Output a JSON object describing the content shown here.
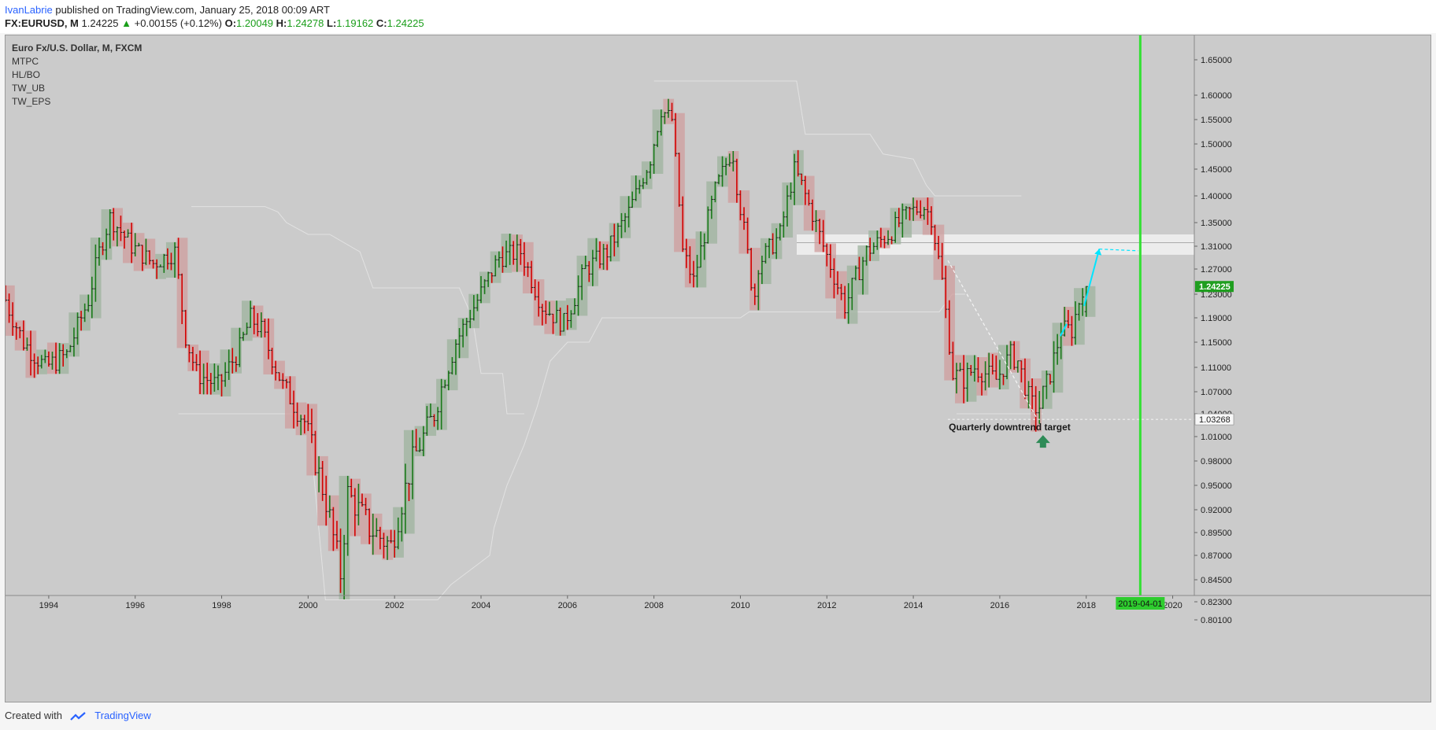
{
  "header": {
    "author": "IvanLabrie",
    "published": "published on TradingView.com, January 25, 2018 00:09 ART",
    "symbol": "FX:EURUSD, M",
    "last": "1.24225",
    "change": "+0.00155 (+0.12%)",
    "o_label": "O:",
    "o_value": "1.20049",
    "h_label": "H:",
    "h_value": "1.24278",
    "l_label": "L:",
    "l_value": "1.19162",
    "c_label": "C:",
    "c_value": "1.24225"
  },
  "legend": {
    "title": "Euro Fx/U.S. Dollar, M, FXCM",
    "studies": [
      "MTPC",
      "HL/BO",
      "TW_UB",
      "TW_EPS"
    ]
  },
  "footer": {
    "created": "Created with",
    "brand": "TradingView"
  },
  "colors": {
    "background": "#cbcbcb",
    "up": "#1a7a1a",
    "down": "#d40000",
    "marker": "#33e033",
    "projection": "#00e5ff",
    "box_up": "#9eb39e",
    "box_down": "#cf9e9e"
  },
  "chart_data": {
    "type": "ohlc",
    "timeframe": "monthly",
    "ylim": [
      0.79,
      1.66
    ],
    "xlim": [
      1993.0,
      2020.5
    ],
    "y_ticks": [
      "1.65000",
      "1.60000",
      "1.55000",
      "1.50000",
      "1.45000",
      "1.40000",
      "1.35000",
      "1.31000",
      "1.27000",
      "1.23000",
      "1.19000",
      "1.15000",
      "1.11000",
      "1.07000",
      "1.04000",
      "1.01000",
      "0.98000",
      "0.95000",
      "0.92000",
      "0.89500",
      "0.87000",
      "0.84500",
      "0.82300",
      "0.80100"
    ],
    "x_ticks": [
      "1994",
      "1996",
      "1998",
      "2000",
      "2002",
      "2004",
      "2006",
      "2008",
      "2010",
      "2012",
      "2014",
      "2016",
      "2018",
      "2020"
    ],
    "last_price": "1.24225",
    "target_price": "1.03268",
    "marker_date": "2019-04-01",
    "annotation": "Quarterly downtrend target",
    "series": {
      "t": [
        1993.0,
        1993.5,
        1994.0,
        1994.5,
        1995.0,
        1995.25,
        1995.5,
        1996.0,
        1996.5,
        1997.0,
        1997.25,
        1997.5,
        1998.0,
        1998.5,
        1998.75,
        1999.0,
        1999.5,
        2000.0,
        2000.5,
        2000.83,
        2001.0,
        2001.5,
        2002.0,
        2002.5,
        2003.0,
        2003.5,
        2004.0,
        2004.5,
        2005.0,
        2005.5,
        2005.83,
        2006.0,
        2006.5,
        2007.0,
        2007.5,
        2008.0,
        2008.25,
        2008.5,
        2008.75,
        2009.0,
        2009.25,
        2009.5,
        2009.9,
        2010.0,
        2010.4,
        2010.5,
        2011.0,
        2011.33,
        2011.5,
        2012.0,
        2012.5,
        2013.0,
        2013.5,
        2014.0,
        2014.33,
        2014.5,
        2014.75,
        2015.0,
        2015.25,
        2015.5,
        2016.0,
        2016.33,
        2016.5,
        2016.8,
        2017.0,
        2017.25,
        2017.5,
        2017.75,
        2018.0
      ],
      "c": [
        1.23,
        1.15,
        1.11,
        1.13,
        1.22,
        1.3,
        1.36,
        1.31,
        1.28,
        1.3,
        1.16,
        1.1,
        1.08,
        1.14,
        1.19,
        1.17,
        1.08,
        1.03,
        0.93,
        0.85,
        0.94,
        0.9,
        0.88,
        0.98,
        1.04,
        1.15,
        1.22,
        1.29,
        1.3,
        1.21,
        1.19,
        1.18,
        1.27,
        1.3,
        1.37,
        1.47,
        1.57,
        1.55,
        1.3,
        1.25,
        1.33,
        1.41,
        1.49,
        1.42,
        1.22,
        1.28,
        1.33,
        1.45,
        1.42,
        1.31,
        1.21,
        1.3,
        1.33,
        1.37,
        1.38,
        1.36,
        1.25,
        1.1,
        1.09,
        1.11,
        1.09,
        1.13,
        1.12,
        1.05,
        1.05,
        1.1,
        1.17,
        1.17,
        1.24225
      ]
    }
  }
}
